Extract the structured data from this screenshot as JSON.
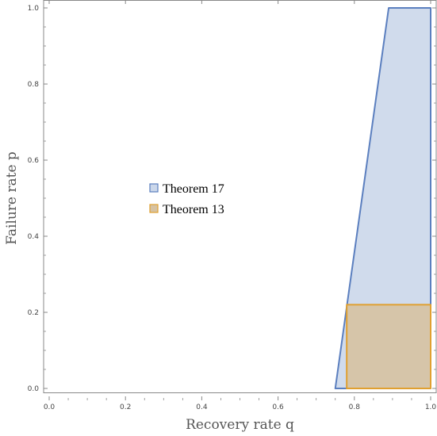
{
  "chart_data": {
    "type": "area",
    "title": "",
    "xlabel": "Recovery rate q",
    "ylabel": "Failure rate p",
    "xlim": [
      0,
      1
    ],
    "ylim": [
      0,
      1
    ],
    "xticks": [
      "0.0",
      "0.2",
      "0.4",
      "0.6",
      "0.8",
      "1.0"
    ],
    "yticks": [
      "0.0",
      "0.2",
      "0.4",
      "0.6",
      "0.8",
      "1.0"
    ],
    "grid": false,
    "legend_position": "center-left",
    "series": [
      {
        "name": "Theorem 17",
        "stroke": "#5b7fbf",
        "fill": "#cbd7ea",
        "polygon": [
          [
            0.75,
            0.0
          ],
          [
            1.0,
            0.0
          ],
          [
            1.0,
            1.0
          ],
          [
            0.89,
            1.0
          ]
        ]
      },
      {
        "name": "Theorem 13",
        "stroke": "#e0a030",
        "fill": "#d6c2a2",
        "polygon": [
          [
            0.78,
            0.0
          ],
          [
            1.0,
            0.0
          ],
          [
            1.0,
            0.22
          ],
          [
            0.78,
            0.22
          ]
        ]
      }
    ]
  }
}
